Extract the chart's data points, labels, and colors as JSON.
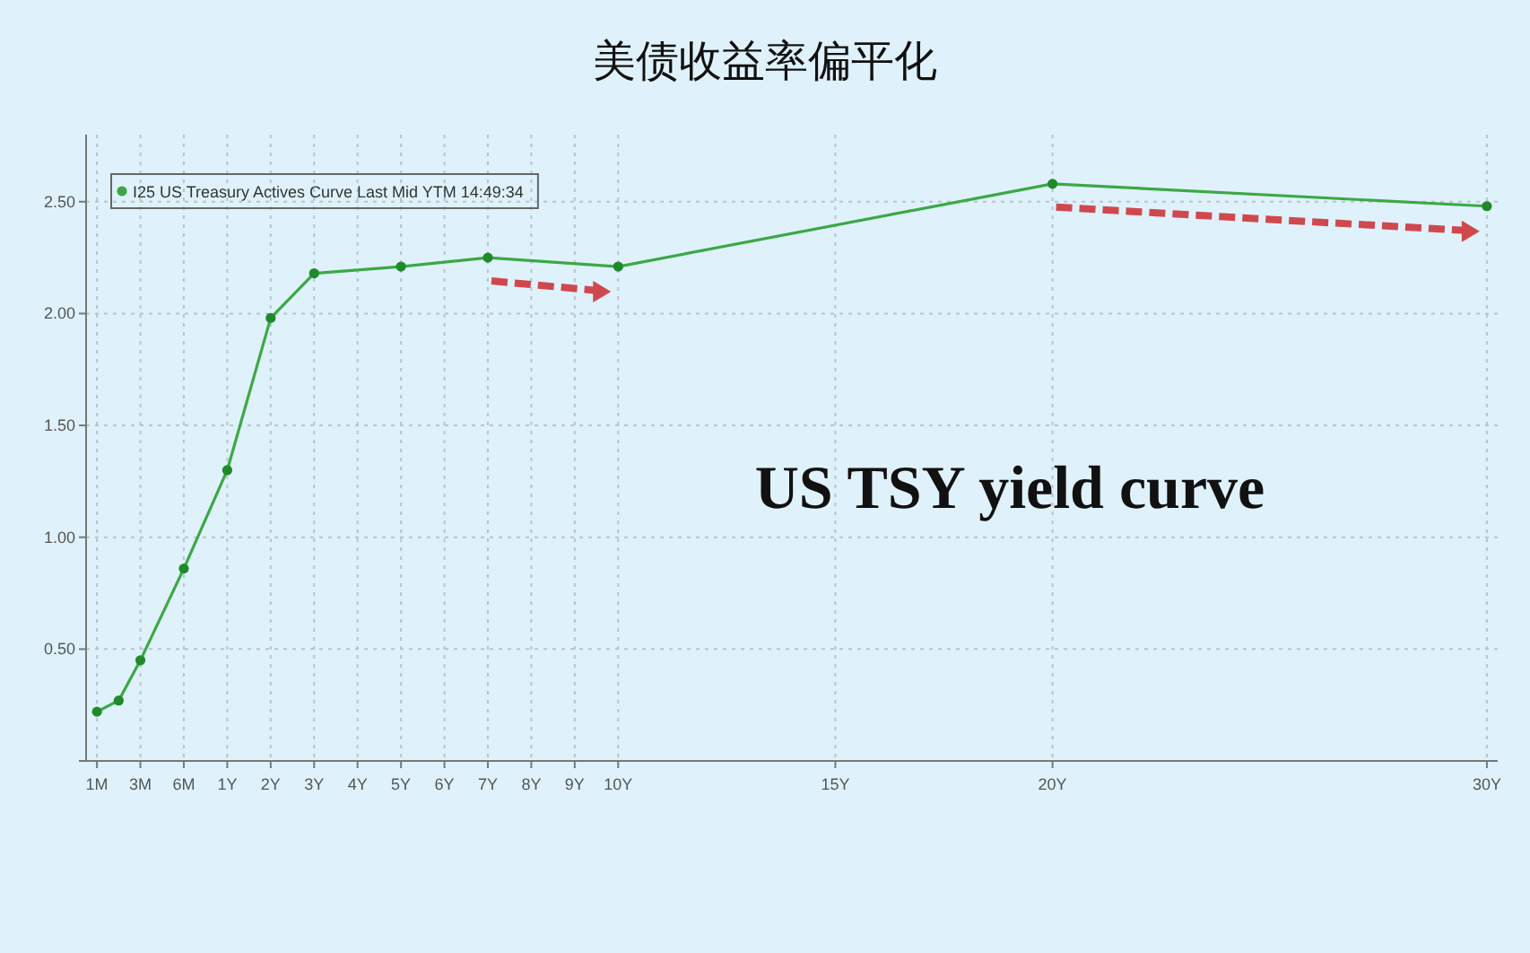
{
  "chart_data": {
    "type": "line",
    "title": "美债收益率偏平化",
    "categories": [
      "1M",
      null,
      "3M",
      null,
      "6M",
      null,
      "1Y",
      null,
      "2Y",
      null,
      "3Y",
      null,
      "4Y",
      null,
      "5Y",
      null,
      "6Y",
      null,
      "7Y",
      null,
      "8Y",
      null,
      "9Y",
      null,
      "10Y",
      null,
      null,
      null,
      null,
      null,
      null,
      null,
      null,
      null,
      "15Y",
      null,
      null,
      null,
      null,
      null,
      null,
      null,
      null,
      null,
      "20Y",
      null,
      null,
      null,
      null,
      null,
      null,
      null,
      null,
      null,
      null,
      null,
      null,
      null,
      null,
      null,
      null,
      null,
      null,
      null,
      "30Y"
    ],
    "series": [
      {
        "name": "I25 US Treasury Actives Curve Last Mid YTM 14:49:34",
        "color": "#3ca845",
        "values": [
          0.22,
          0.27,
          0.45,
          null,
          0.86,
          null,
          1.3,
          null,
          1.98,
          null,
          2.18,
          null,
          null,
          null,
          2.21,
          null,
          null,
          null,
          2.25,
          null,
          null,
          null,
          null,
          null,
          2.21,
          null,
          null,
          null,
          null,
          null,
          null,
          null,
          null,
          null,
          null,
          null,
          null,
          null,
          null,
          null,
          null,
          null,
          null,
          null,
          2.58,
          null,
          null,
          null,
          null,
          null,
          null,
          null,
          null,
          null,
          null,
          null,
          null,
          null,
          null,
          null,
          null,
          null,
          null,
          null,
          2.48
        ]
      }
    ],
    "ylim": [
      0,
      2.8
    ],
    "yticks": [
      {
        "value": 0,
        "label": null
      },
      {
        "value": 0.5,
        "label": "0.50"
      },
      {
        "value": 1,
        "label": "1.00"
      },
      {
        "value": 1.5,
        "label": "1.50"
      },
      {
        "value": 2,
        "label": "2.00"
      },
      {
        "value": 2.5,
        "label": "2.50"
      }
    ],
    "annotations": [
      "US TSY yield curve"
    ],
    "grid": true,
    "legend": "top left",
    "marker": "circle",
    "line_style": "solid"
  }
}
